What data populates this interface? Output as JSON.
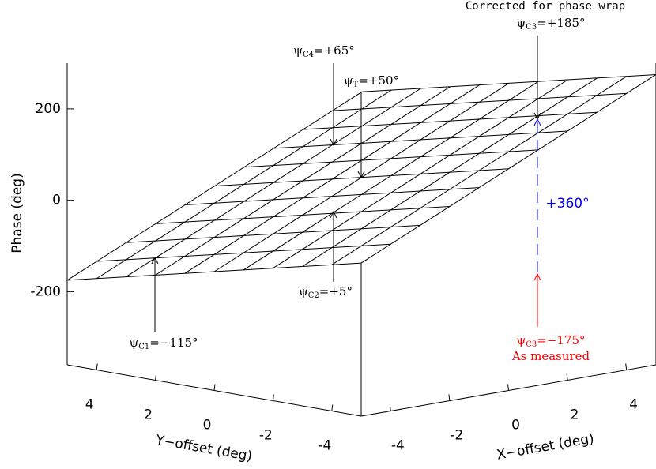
{
  "chart_data": {
    "type": "surface",
    "xlabel": "X−offset (deg)",
    "ylabel": "Y−offset (deg)",
    "zlabel": "Phase (deg)",
    "xlim": [
      -5,
      5
    ],
    "ylim": [
      -5,
      5
    ],
    "zlim": [
      -360,
      300
    ],
    "xticks": [
      -4,
      -2,
      0,
      2,
      4
    ],
    "yticks": [
      -4,
      -2,
      0,
      2,
      4
    ],
    "zticks": [
      -200,
      0,
      200
    ],
    "surface": {
      "phase_at_center": 50,
      "slope_x": 30,
      "slope_y": -15,
      "grid_step": 1,
      "color": "#000000"
    },
    "annotations": {
      "c4": {
        "symbol": "ψ",
        "sub": "C4",
        "text": "=+65°"
      },
      "t": {
        "symbol": "ψ",
        "sub": "T",
        "text": "=+50°"
      },
      "c1": {
        "symbol": "ψ",
        "sub": "C1",
        "text": "=−115°"
      },
      "c2": {
        "symbol": "ψ",
        "sub": "C2",
        "text": "=+5°"
      },
      "c3_corrected": {
        "note": "Corrected for phase wrap",
        "symbol": "ψ",
        "sub": "C3",
        "text": "=+185°"
      },
      "c3_measured": {
        "symbol": "ψ",
        "sub": "C3",
        "text": "=−175°",
        "note": "As measured",
        "color": "#ff0000"
      },
      "wrap": {
        "text": "+360°",
        "color": "#0000ff"
      }
    }
  }
}
